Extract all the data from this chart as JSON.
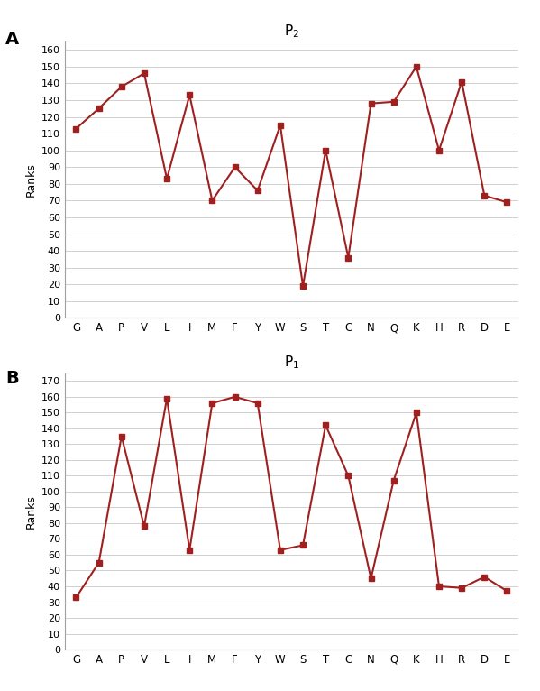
{
  "categories": [
    "G",
    "A",
    "P",
    "V",
    "L",
    "I",
    "M",
    "F",
    "Y",
    "W",
    "S",
    "T",
    "C",
    "N",
    "Q",
    "K",
    "H",
    "R",
    "D",
    "E"
  ],
  "p2_values": [
    113,
    125,
    138,
    146,
    83,
    133,
    70,
    90,
    76,
    115,
    19,
    100,
    36,
    128,
    129,
    150,
    100,
    141,
    73,
    69
  ],
  "p1_values": [
    33,
    55,
    135,
    78,
    159,
    63,
    156,
    160,
    156,
    63,
    66,
    142,
    110,
    45,
    107,
    150,
    40,
    39,
    46,
    37
  ],
  "line_color": "#a02020",
  "marker": "s",
  "marker_size": 4,
  "ylabel": "Ranks",
  "title_p2": "P$_2$",
  "title_p1": "P$_1$",
  "label_A": "A",
  "label_B": "B",
  "ylim_p2": [
    0,
    165
  ],
  "ylim_p1": [
    0,
    175
  ],
  "yticks_p2": [
    0,
    10,
    20,
    30,
    40,
    50,
    60,
    70,
    80,
    90,
    100,
    110,
    120,
    130,
    140,
    150,
    160
  ],
  "yticks_p1": [
    0,
    10,
    20,
    30,
    40,
    50,
    60,
    70,
    80,
    90,
    100,
    110,
    120,
    130,
    140,
    150,
    160,
    170
  ],
  "bg_color": "#ffffff",
  "grid_color": "#d0d0d0",
  "fig_bg": "#ffffff",
  "spine_color": "#a0a0a0"
}
